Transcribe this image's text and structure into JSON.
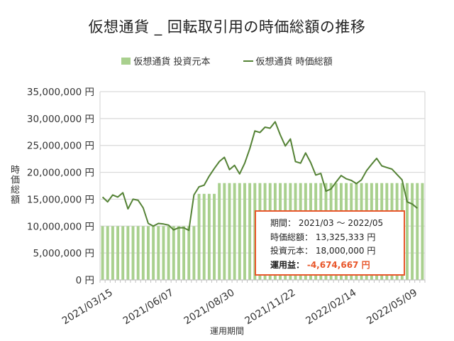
{
  "chart_data": {
    "type": "bar+line",
    "title": "仮想通貨 _ 回転取引用の時価総額の推移",
    "xlabel": "運用期間",
    "ylabel": "時価総額",
    "ylim": [
      0,
      35000000
    ],
    "y_ticks": [
      "35,000,000 円",
      "30,000,000 円",
      "25,000,000 円",
      "20,000,000 円",
      "15,000,000 円",
      "10,000,000 円",
      "5,000,000 円",
      "0 円"
    ],
    "y_tick_values": [
      35000000,
      30000000,
      25000000,
      20000000,
      15000000,
      10000000,
      5000000,
      0
    ],
    "x_tick_labels": [
      "2021/03/15",
      "2021/06/07",
      "2021/08/30",
      "2021/11/22",
      "2022/02/14",
      "2022/05/09"
    ],
    "x_tick_indices": [
      0,
      12,
      24,
      36,
      48,
      60
    ],
    "grid": true,
    "legend_position": "top",
    "series": [
      {
        "name": "仮想通貨 投資元本",
        "type": "bar",
        "color": "#a9d08e",
        "values": [
          10000000,
          10000000,
          10000000,
          10000000,
          10000000,
          10000000,
          10000000,
          10000000,
          10000000,
          10000000,
          10000000,
          10000000,
          10000000,
          10000000,
          10000000,
          10000000,
          10000000,
          10000000,
          10000000,
          16000000,
          16000000,
          16000000,
          16000000,
          18000000,
          18000000,
          18000000,
          18000000,
          18000000,
          18000000,
          18000000,
          18000000,
          18000000,
          18000000,
          18000000,
          18000000,
          18000000,
          18000000,
          18000000,
          18000000,
          18000000,
          18000000,
          18000000,
          18000000,
          18000000,
          18000000,
          18000000,
          18000000,
          18000000,
          18000000,
          18000000,
          18000000,
          18000000,
          18000000,
          18000000,
          18000000,
          18000000,
          18000000,
          18000000,
          18000000,
          18000000,
          18000000,
          18000000,
          18000000,
          18000000
        ]
      },
      {
        "name": "仮想通貨 時価総額",
        "type": "line",
        "color": "#548235",
        "values": [
          15400000,
          14500000,
          15800000,
          15400000,
          16200000,
          13200000,
          15000000,
          14800000,
          13400000,
          10500000,
          10000000,
          10500000,
          10400000,
          10200000,
          9300000,
          9700000,
          9700000,
          9200000,
          15800000,
          17300000,
          17600000,
          19300000,
          20700000,
          22000000,
          22800000,
          20500000,
          21300000,
          19700000,
          21700000,
          24400000,
          27700000,
          27400000,
          28400000,
          28200000,
          29400000,
          27000000,
          24900000,
          26200000,
          22000000,
          21700000,
          23600000,
          21800000,
          19500000,
          19800000,
          16500000,
          16900000,
          18200000,
          19400000,
          18800000,
          18500000,
          17900000,
          18600000,
          20300000,
          21500000,
          22600000,
          21200000,
          20900000,
          20600000,
          19600000,
          18600000,
          14500000,
          14100000,
          13325333
        ]
      }
    ]
  },
  "info_box": {
    "period_label": "期間：",
    "period_value": "2021/03 ～ 2022/05",
    "market_value_label": "時価総額：",
    "market_value": "13,325,333 円",
    "principal_label": "投資元本：",
    "principal_value": "18,000,000 円",
    "profit_label": "運用益：",
    "profit_value": "-4,674,667 円",
    "border_color": "#e8562a"
  }
}
